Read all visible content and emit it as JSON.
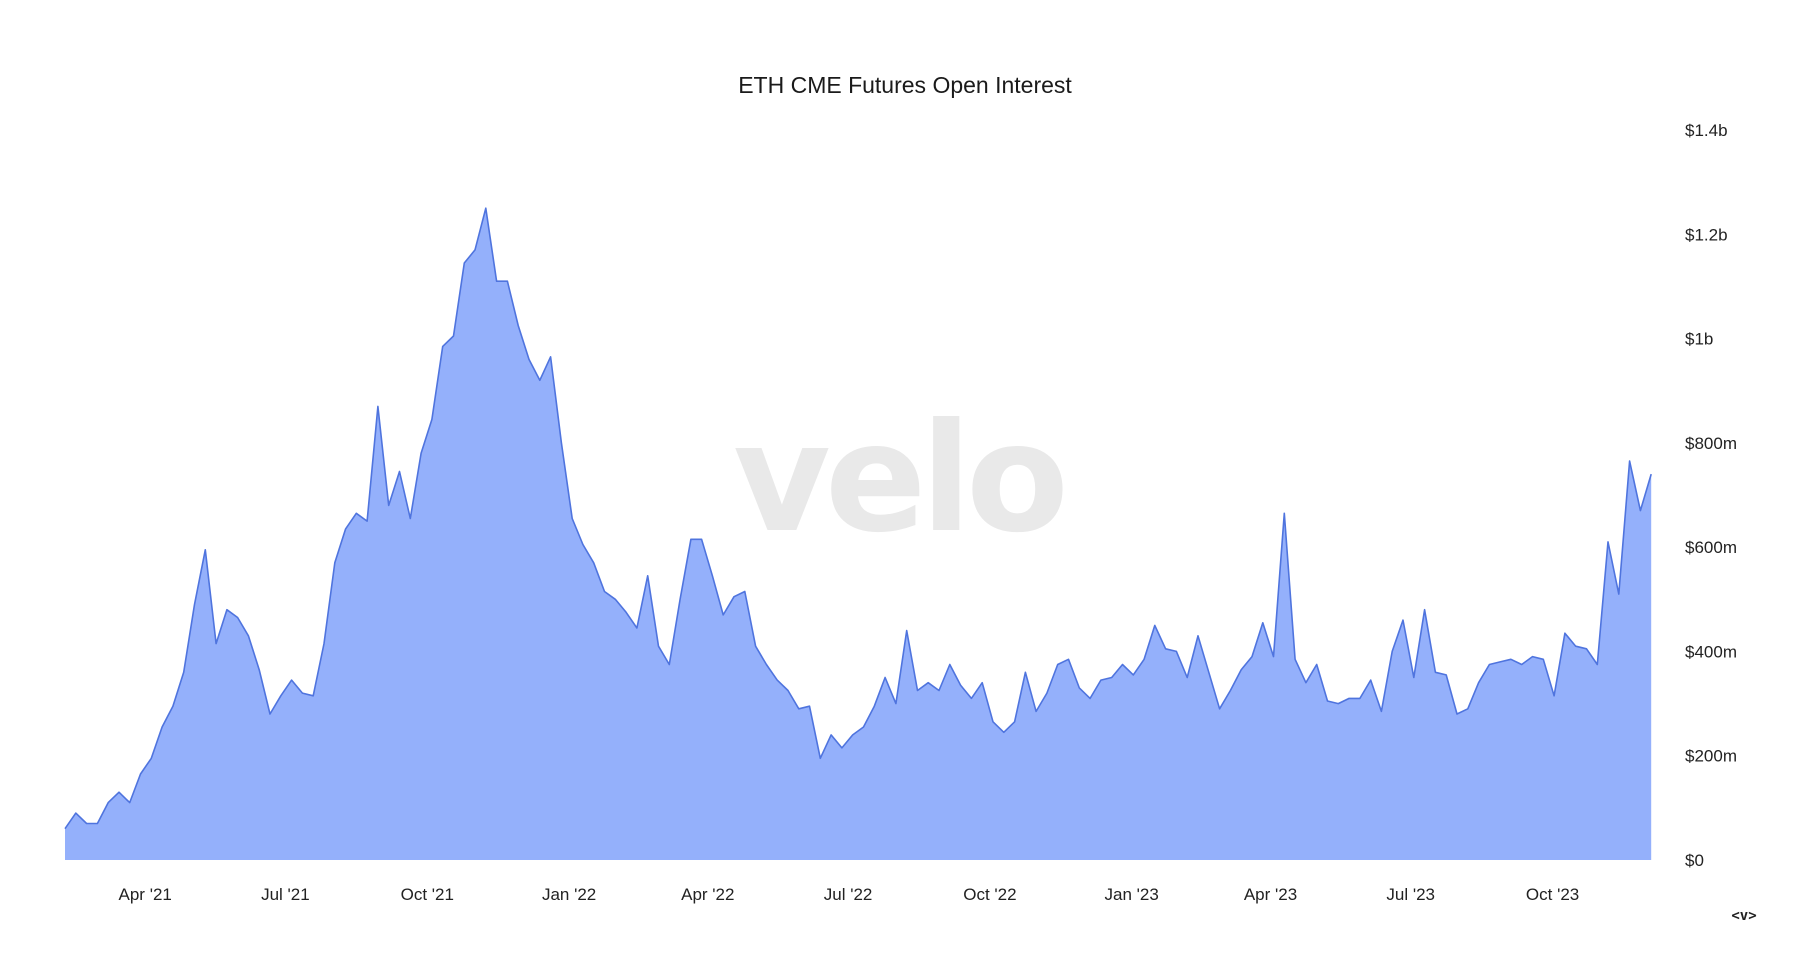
{
  "colors": {
    "area_fill": "#94b0fb",
    "line_stroke": "#4f74de",
    "watermark": "#e9e9e9",
    "text": "#222222"
  },
  "watermark": "velo",
  "nav_control": "<v>",
  "chart_data": {
    "type": "area",
    "title": "ETH CME Futures Open Interest",
    "xlabel": "",
    "ylabel": "",
    "x_axis": "weekly dates",
    "ylim": [
      0,
      1400000000
    ],
    "y_ticks": [
      {
        "value": 0,
        "label": "$0"
      },
      {
        "value": 200000000,
        "label": "$200m"
      },
      {
        "value": 400000000,
        "label": "$400m"
      },
      {
        "value": 600000000,
        "label": "$600m"
      },
      {
        "value": 800000000,
        "label": "$800m"
      },
      {
        "value": 1000000000,
        "label": "$1b"
      },
      {
        "value": 1200000000,
        "label": "$1.2b"
      },
      {
        "value": 1400000000,
        "label": "$1.4b"
      }
    ],
    "x_ticks": [
      {
        "date": "2021-04-01",
        "label": "Apr '21"
      },
      {
        "date": "2021-07-01",
        "label": "Jul '21"
      },
      {
        "date": "2021-10-01",
        "label": "Oct '21"
      },
      {
        "date": "2022-01-01",
        "label": "Jan '22"
      },
      {
        "date": "2022-04-01",
        "label": "Apr '22"
      },
      {
        "date": "2022-07-01",
        "label": "Jul '22"
      },
      {
        "date": "2022-10-01",
        "label": "Oct '22"
      },
      {
        "date": "2023-01-01",
        "label": "Jan '23"
      },
      {
        "date": "2023-04-01",
        "label": "Apr '23"
      },
      {
        "date": "2023-07-01",
        "label": "Jul '23"
      },
      {
        "date": "2023-10-01",
        "label": "Oct '23"
      }
    ],
    "x_range": [
      "2021-02-08",
      "2023-12-11"
    ],
    "grid": false,
    "legend": "none",
    "y_axis_position": "right",
    "series": [
      {
        "name": "",
        "points": [
          [
            "2021-02-08",
            60000000
          ],
          [
            "2021-02-15",
            90000000
          ],
          [
            "2021-02-22",
            70000000
          ],
          [
            "2021-03-01",
            70000000
          ],
          [
            "2021-03-08",
            110000000
          ],
          [
            "2021-03-15",
            130000000
          ],
          [
            "2021-03-22",
            110000000
          ],
          [
            "2021-03-29",
            165000000
          ],
          [
            "2021-04-05",
            195000000
          ],
          [
            "2021-04-12",
            255000000
          ],
          [
            "2021-04-19",
            295000000
          ],
          [
            "2021-04-26",
            360000000
          ],
          [
            "2021-05-03",
            490000000
          ],
          [
            "2021-05-10",
            595000000
          ],
          [
            "2021-05-17",
            415000000
          ],
          [
            "2021-05-24",
            480000000
          ],
          [
            "2021-05-31",
            465000000
          ],
          [
            "2021-06-07",
            430000000
          ],
          [
            "2021-06-14",
            365000000
          ],
          [
            "2021-06-21",
            280000000
          ],
          [
            "2021-06-28",
            315000000
          ],
          [
            "2021-07-05",
            345000000
          ],
          [
            "2021-07-12",
            320000000
          ],
          [
            "2021-07-19",
            315000000
          ],
          [
            "2021-07-26",
            415000000
          ],
          [
            "2021-08-02",
            570000000
          ],
          [
            "2021-08-09",
            635000000
          ],
          [
            "2021-08-16",
            665000000
          ],
          [
            "2021-08-23",
            650000000
          ],
          [
            "2021-08-30",
            870000000
          ],
          [
            "2021-09-06",
            680000000
          ],
          [
            "2021-09-13",
            745000000
          ],
          [
            "2021-09-20",
            655000000
          ],
          [
            "2021-09-27",
            780000000
          ],
          [
            "2021-10-04",
            845000000
          ],
          [
            "2021-10-11",
            985000000
          ],
          [
            "2021-10-18",
            1005000000
          ],
          [
            "2021-10-25",
            1145000000
          ],
          [
            "2021-11-01",
            1170000000
          ],
          [
            "2021-11-08",
            1250000000
          ],
          [
            "2021-11-15",
            1110000000
          ],
          [
            "2021-11-22",
            1110000000
          ],
          [
            "2021-11-29",
            1025000000
          ],
          [
            "2021-12-06",
            960000000
          ],
          [
            "2021-12-13",
            920000000
          ],
          [
            "2021-12-20",
            965000000
          ],
          [
            "2021-12-27",
            800000000
          ],
          [
            "2022-01-03",
            655000000
          ],
          [
            "2022-01-10",
            605000000
          ],
          [
            "2022-01-17",
            570000000
          ],
          [
            "2022-01-24",
            515000000
          ],
          [
            "2022-01-31",
            500000000
          ],
          [
            "2022-02-07",
            475000000
          ],
          [
            "2022-02-14",
            445000000
          ],
          [
            "2022-02-21",
            545000000
          ],
          [
            "2022-02-28",
            410000000
          ],
          [
            "2022-03-07",
            375000000
          ],
          [
            "2022-03-14",
            500000000
          ],
          [
            "2022-03-21",
            615000000
          ],
          [
            "2022-03-28",
            615000000
          ],
          [
            "2022-04-04",
            545000000
          ],
          [
            "2022-04-11",
            470000000
          ],
          [
            "2022-04-18",
            505000000
          ],
          [
            "2022-04-25",
            515000000
          ],
          [
            "2022-05-02",
            410000000
          ],
          [
            "2022-05-09",
            375000000
          ],
          [
            "2022-05-16",
            345000000
          ],
          [
            "2022-05-23",
            325000000
          ],
          [
            "2022-05-30",
            290000000
          ],
          [
            "2022-06-06",
            295000000
          ],
          [
            "2022-06-13",
            195000000
          ],
          [
            "2022-06-20",
            240000000
          ],
          [
            "2022-06-27",
            215000000
          ],
          [
            "2022-07-04",
            240000000
          ],
          [
            "2022-07-11",
            255000000
          ],
          [
            "2022-07-18",
            295000000
          ],
          [
            "2022-07-25",
            350000000
          ],
          [
            "2022-08-01",
            300000000
          ],
          [
            "2022-08-08",
            440000000
          ],
          [
            "2022-08-15",
            325000000
          ],
          [
            "2022-08-22",
            340000000
          ],
          [
            "2022-08-29",
            325000000
          ],
          [
            "2022-09-05",
            375000000
          ],
          [
            "2022-09-12",
            335000000
          ],
          [
            "2022-09-19",
            310000000
          ],
          [
            "2022-09-26",
            340000000
          ],
          [
            "2022-10-03",
            265000000
          ],
          [
            "2022-10-10",
            245000000
          ],
          [
            "2022-10-17",
            265000000
          ],
          [
            "2022-10-24",
            360000000
          ],
          [
            "2022-10-31",
            285000000
          ],
          [
            "2022-11-07",
            320000000
          ],
          [
            "2022-11-14",
            375000000
          ],
          [
            "2022-11-21",
            385000000
          ],
          [
            "2022-11-28",
            330000000
          ],
          [
            "2022-12-05",
            310000000
          ],
          [
            "2022-12-12",
            345000000
          ],
          [
            "2022-12-19",
            350000000
          ],
          [
            "2022-12-26",
            375000000
          ],
          [
            "2023-01-02",
            355000000
          ],
          [
            "2023-01-09",
            385000000
          ],
          [
            "2023-01-16",
            450000000
          ],
          [
            "2023-01-23",
            405000000
          ],
          [
            "2023-01-30",
            400000000
          ],
          [
            "2023-02-06",
            350000000
          ],
          [
            "2023-02-13",
            430000000
          ],
          [
            "2023-02-20",
            360000000
          ],
          [
            "2023-02-27",
            290000000
          ],
          [
            "2023-03-06",
            325000000
          ],
          [
            "2023-03-13",
            365000000
          ],
          [
            "2023-03-20",
            390000000
          ],
          [
            "2023-03-27",
            455000000
          ],
          [
            "2023-04-03",
            390000000
          ],
          [
            "2023-04-10",
            665000000
          ],
          [
            "2023-04-17",
            385000000
          ],
          [
            "2023-04-24",
            340000000
          ],
          [
            "2023-05-01",
            375000000
          ],
          [
            "2023-05-08",
            305000000
          ],
          [
            "2023-05-15",
            300000000
          ],
          [
            "2023-05-22",
            310000000
          ],
          [
            "2023-05-29",
            310000000
          ],
          [
            "2023-06-05",
            345000000
          ],
          [
            "2023-06-12",
            285000000
          ],
          [
            "2023-06-19",
            400000000
          ],
          [
            "2023-06-26",
            460000000
          ],
          [
            "2023-07-03",
            350000000
          ],
          [
            "2023-07-10",
            480000000
          ],
          [
            "2023-07-17",
            360000000
          ],
          [
            "2023-07-24",
            355000000
          ],
          [
            "2023-07-31",
            280000000
          ],
          [
            "2023-08-07",
            290000000
          ],
          [
            "2023-08-14",
            340000000
          ],
          [
            "2023-08-21",
            375000000
          ],
          [
            "2023-08-28",
            380000000
          ],
          [
            "2023-09-04",
            385000000
          ],
          [
            "2023-09-11",
            375000000
          ],
          [
            "2023-09-18",
            390000000
          ],
          [
            "2023-09-25",
            385000000
          ],
          [
            "2023-10-02",
            315000000
          ],
          [
            "2023-10-09",
            435000000
          ],
          [
            "2023-10-16",
            410000000
          ],
          [
            "2023-10-23",
            405000000
          ],
          [
            "2023-10-30",
            375000000
          ],
          [
            "2023-11-06",
            610000000
          ],
          [
            "2023-11-13",
            510000000
          ],
          [
            "2023-11-20",
            765000000
          ],
          [
            "2023-11-27",
            670000000
          ],
          [
            "2023-12-04",
            740000000
          ]
        ]
      }
    ]
  }
}
